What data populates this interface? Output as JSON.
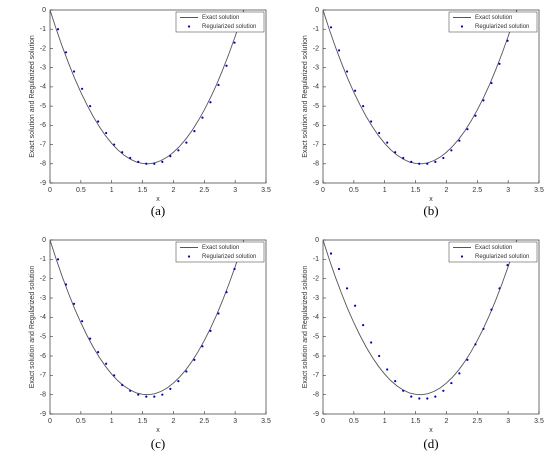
{
  "chart_data": [
    {
      "type": "line",
      "label": "(a)",
      "xlabel": "x",
      "ylabel": "Exact solution and Regularized solution",
      "xlim": [
        0,
        3.5
      ],
      "xticks": [
        0,
        0.5,
        1,
        1.5,
        2,
        2.5,
        3,
        3.5
      ],
      "ylim": [
        -9,
        0
      ],
      "yticks": [
        -9,
        -8,
        -7,
        -6,
        -5,
        -4,
        -3,
        -2,
        -1,
        0
      ],
      "legend": "upper right",
      "series": [
        {
          "name": "Exact solution",
          "color": "#555555",
          "style": "line",
          "x": [
            0,
            0.1,
            0.2,
            0.3,
            0.4,
            0.5,
            0.6,
            0.7,
            0.8,
            0.9,
            1.0,
            1.1,
            1.2,
            1.3,
            1.4,
            1.5,
            1.6,
            1.7,
            1.8,
            1.9,
            2.0,
            2.1,
            2.2,
            2.3,
            2.4,
            2.5,
            2.6,
            2.7,
            2.8,
            2.9,
            3.0,
            3.1,
            3.2
          ],
          "values": [
            0,
            -0.99,
            -1.91,
            -2.76,
            -3.56,
            -4.28,
            -4.94,
            -5.54,
            -6.07,
            -6.54,
            -6.94,
            -7.28,
            -7.55,
            -7.76,
            -7.91,
            -7.98,
            -8.0,
            -7.95,
            -7.83,
            -7.65,
            -7.4,
            -7.09,
            -6.72,
            -6.28,
            -5.77,
            -5.2,
            -4.57,
            -3.87,
            -3.1,
            -2.27,
            -1.38,
            -0.42,
            0.61
          ]
        },
        {
          "name": "Regularized solution",
          "color": "#0000cc",
          "style": "markers",
          "x": [
            0.13,
            0.26,
            0.39,
            0.52,
            0.65,
            0.78,
            0.91,
            1.04,
            1.17,
            1.3,
            1.43,
            1.56,
            1.69,
            1.82,
            1.95,
            2.08,
            2.21,
            2.34,
            2.47,
            2.6,
            2.73,
            2.86,
            2.99
          ],
          "values": [
            -1.0,
            -2.2,
            -3.2,
            -4.1,
            -5.0,
            -5.8,
            -6.4,
            -7.0,
            -7.4,
            -7.7,
            -7.9,
            -8.0,
            -8.0,
            -7.9,
            -7.6,
            -7.3,
            -6.9,
            -6.3,
            -5.6,
            -4.8,
            -3.9,
            -2.9,
            -1.7
          ]
        }
      ]
    },
    {
      "type": "line",
      "label": "(b)",
      "xlabel": "x",
      "ylabel": "Exact solution and Regularized solution",
      "xlim": [
        0,
        3.5
      ],
      "xticks": [
        0,
        0.5,
        1,
        1.5,
        2,
        2.5,
        3,
        3.5
      ],
      "ylim": [
        -9,
        0
      ],
      "yticks": [
        -9,
        -8,
        -7,
        -6,
        -5,
        -4,
        -3,
        -2,
        -1,
        0
      ],
      "legend": "upper right",
      "series": [
        {
          "name": "Exact solution",
          "color": "#555555",
          "style": "line",
          "x": [
            0,
            0.1,
            0.2,
            0.3,
            0.4,
            0.5,
            0.6,
            0.7,
            0.8,
            0.9,
            1.0,
            1.1,
            1.2,
            1.3,
            1.4,
            1.5,
            1.6,
            1.7,
            1.8,
            1.9,
            2.0,
            2.1,
            2.2,
            2.3,
            2.4,
            2.5,
            2.6,
            2.7,
            2.8,
            2.9,
            3.0,
            3.1,
            3.2
          ],
          "values": [
            0,
            -0.99,
            -1.91,
            -2.76,
            -3.56,
            -4.28,
            -4.94,
            -5.54,
            -6.07,
            -6.54,
            -6.94,
            -7.28,
            -7.55,
            -7.76,
            -7.91,
            -7.98,
            -8.0,
            -7.95,
            -7.83,
            -7.65,
            -7.4,
            -7.09,
            -6.72,
            -6.28,
            -5.77,
            -5.2,
            -4.57,
            -3.87,
            -3.1,
            -2.27,
            -1.38,
            -0.42,
            0.61
          ]
        },
        {
          "name": "Regularized solution",
          "color": "#0000cc",
          "style": "markers",
          "x": [
            0.13,
            0.26,
            0.39,
            0.52,
            0.65,
            0.78,
            0.91,
            1.04,
            1.17,
            1.3,
            1.43,
            1.56,
            1.69,
            1.82,
            1.95,
            2.08,
            2.21,
            2.34,
            2.47,
            2.6,
            2.73,
            2.86,
            2.99
          ],
          "values": [
            -0.9,
            -2.1,
            -3.2,
            -4.2,
            -5.0,
            -5.8,
            -6.4,
            -6.9,
            -7.4,
            -7.7,
            -7.9,
            -8.0,
            -8.0,
            -7.9,
            -7.7,
            -7.3,
            -6.8,
            -6.2,
            -5.5,
            -4.7,
            -3.8,
            -2.8,
            -1.6
          ]
        }
      ]
    },
    {
      "type": "line",
      "label": "(c)",
      "xlabel": "x",
      "ylabel": "Exact solution and Regularized solution",
      "xlim": [
        0,
        3.5
      ],
      "xticks": [
        0,
        0.5,
        1,
        1.5,
        2,
        2.5,
        3,
        3.5
      ],
      "ylim": [
        -9,
        0
      ],
      "yticks": [
        -9,
        -8,
        -7,
        -6,
        -5,
        -4,
        -3,
        -2,
        -1,
        0
      ],
      "legend": "upper right",
      "series": [
        {
          "name": "Exact solution",
          "color": "#555555",
          "style": "line",
          "x": [
            0,
            0.1,
            0.2,
            0.3,
            0.4,
            0.5,
            0.6,
            0.7,
            0.8,
            0.9,
            1.0,
            1.1,
            1.2,
            1.3,
            1.4,
            1.5,
            1.6,
            1.7,
            1.8,
            1.9,
            2.0,
            2.1,
            2.2,
            2.3,
            2.4,
            2.5,
            2.6,
            2.7,
            2.8,
            2.9,
            3.0,
            3.1,
            3.2
          ],
          "values": [
            0,
            -0.99,
            -1.91,
            -2.76,
            -3.56,
            -4.28,
            -4.94,
            -5.54,
            -6.07,
            -6.54,
            -6.94,
            -7.28,
            -7.55,
            -7.76,
            -7.91,
            -7.98,
            -8.0,
            -7.95,
            -7.83,
            -7.65,
            -7.4,
            -7.09,
            -6.72,
            -6.28,
            -5.77,
            -5.2,
            -4.57,
            -3.87,
            -3.1,
            -2.27,
            -1.38,
            -0.42,
            0.61
          ]
        },
        {
          "name": "Regularized solution",
          "color": "#0000cc",
          "style": "markers",
          "x": [
            0.13,
            0.26,
            0.39,
            0.52,
            0.65,
            0.78,
            0.91,
            1.04,
            1.17,
            1.3,
            1.43,
            1.56,
            1.69,
            1.82,
            1.95,
            2.08,
            2.21,
            2.34,
            2.47,
            2.6,
            2.73,
            2.86,
            2.99
          ],
          "values": [
            -1.0,
            -2.3,
            -3.3,
            -4.2,
            -5.1,
            -5.8,
            -6.4,
            -7.0,
            -7.5,
            -7.8,
            -8.0,
            -8.1,
            -8.1,
            -8.0,
            -7.7,
            -7.3,
            -6.8,
            -6.2,
            -5.5,
            -4.7,
            -3.8,
            -2.7,
            -1.5
          ]
        }
      ]
    },
    {
      "type": "line",
      "label": "(d)",
      "xlabel": "x",
      "ylabel": "Exact solution and Regularized solution",
      "xlim": [
        0,
        3.5
      ],
      "xticks": [
        0,
        0.5,
        1,
        1.5,
        2,
        2.5,
        3,
        3.5
      ],
      "ylim": [
        -9,
        0
      ],
      "yticks": [
        -9,
        -8,
        -7,
        -6,
        -5,
        -4,
        -3,
        -2,
        -1,
        0
      ],
      "legend": "upper right",
      "series": [
        {
          "name": "Exact solution",
          "color": "#555555",
          "style": "line",
          "x": [
            0,
            0.1,
            0.2,
            0.3,
            0.4,
            0.5,
            0.6,
            0.7,
            0.8,
            0.9,
            1.0,
            1.1,
            1.2,
            1.3,
            1.4,
            1.5,
            1.6,
            1.7,
            1.8,
            1.9,
            2.0,
            2.1,
            2.2,
            2.3,
            2.4,
            2.5,
            2.6,
            2.7,
            2.8,
            2.9,
            3.0,
            3.1,
            3.2
          ],
          "values": [
            0,
            -0.99,
            -1.91,
            -2.76,
            -3.56,
            -4.28,
            -4.94,
            -5.54,
            -6.07,
            -6.54,
            -6.94,
            -7.28,
            -7.55,
            -7.76,
            -7.91,
            -7.98,
            -8.0,
            -7.95,
            -7.83,
            -7.65,
            -7.4,
            -7.09,
            -6.72,
            -6.28,
            -5.77,
            -5.2,
            -4.57,
            -3.87,
            -3.1,
            -2.27,
            -1.38,
            -0.42,
            0.61
          ]
        },
        {
          "name": "Regularized solution",
          "color": "#0000cc",
          "style": "markers",
          "x": [
            0.13,
            0.26,
            0.39,
            0.52,
            0.65,
            0.78,
            0.91,
            1.04,
            1.17,
            1.3,
            1.43,
            1.56,
            1.69,
            1.82,
            1.95,
            2.08,
            2.21,
            2.34,
            2.47,
            2.6,
            2.73,
            2.86,
            2.99
          ],
          "values": [
            -0.7,
            -1.5,
            -2.5,
            -3.4,
            -4.4,
            -5.3,
            -6.0,
            -6.7,
            -7.3,
            -7.8,
            -8.1,
            -8.2,
            -8.2,
            -8.1,
            -7.8,
            -7.4,
            -6.9,
            -6.2,
            -5.4,
            -4.6,
            -3.6,
            -2.5,
            -1.3
          ]
        }
      ]
    }
  ]
}
